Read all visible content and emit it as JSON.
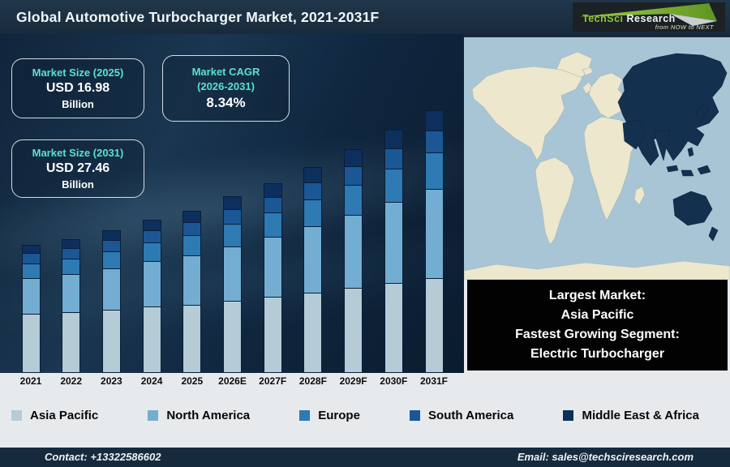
{
  "header": {
    "title": "Global Automotive Turbocharger Market, 2021-2031F",
    "logo": {
      "brand_1": "TechSci",
      "brand_2": "Research",
      "tagline": "from NOW to NEXT"
    }
  },
  "stats": [
    {
      "label": "Market Size (2025)",
      "value": "USD 16.98",
      "unit": "Billion"
    },
    {
      "label_line1": "Market CAGR",
      "label_line2": "(2026-2031)",
      "value": "8.34%"
    },
    {
      "label": "Market Size (2031)",
      "value": "USD 27.46",
      "unit": "Billion"
    }
  ],
  "chart_data": {
    "type": "bar",
    "stacked": true,
    "title": "Global Automotive Turbocharger Market, 2021-2031F",
    "unit": "USD Billion",
    "categories": [
      "2021",
      "2022",
      "2023",
      "2024",
      "2025",
      "2026E",
      "2027F",
      "2028F",
      "2029F",
      "2030F",
      "2031F"
    ],
    "series": [
      {
        "name": "Asia Pacific",
        "color": "#b5cbd6",
        "values": [
          6.19,
          6.37,
          6.63,
          6.91,
          7.13,
          7.54,
          7.97,
          8.42,
          8.89,
          9.38,
          9.89
        ]
      },
      {
        "name": "North America",
        "color": "#74add2",
        "values": [
          3.71,
          3.99,
          4.34,
          4.74,
          5.13,
          5.67,
          6.28,
          6.93,
          7.65,
          8.47,
          9.34
        ]
      },
      {
        "name": "Europe",
        "color": "#2e7ab3",
        "values": [
          1.54,
          1.65,
          1.8,
          1.95,
          2.11,
          2.34,
          2.57,
          2.83,
          3.14,
          3.45,
          3.82
        ]
      },
      {
        "name": "South America",
        "color": "#1b5795",
        "values": [
          1.09,
          1.14,
          1.22,
          1.31,
          1.39,
          1.51,
          1.65,
          1.79,
          1.94,
          2.13,
          2.31
        ]
      },
      {
        "name": "Middle East & Africa",
        "color": "#0d2f5d",
        "values": [
          0.87,
          0.95,
          1.01,
          1.09,
          1.22,
          1.34,
          1.46,
          1.62,
          1.78,
          1.93,
          2.1
        ]
      }
    ],
    "totals": [
      13.4,
      14.1,
      15.0,
      16.0,
      16.98,
      18.4,
      19.93,
      21.59,
      23.4,
      25.36,
      27.46
    ],
    "stated_values": {
      "market_size_2025_usd_billion": 16.98,
      "market_size_2031_usd_billion": 27.46,
      "cagr_2026_2031_percent": 8.34
    },
    "ylim": [
      0,
      28
    ],
    "grid": false,
    "legend_position": "bottom"
  },
  "map": {
    "highlighted_region": "Asia Pacific",
    "ocean_color": "#a8c5d5",
    "land_color": "#ece7cd",
    "highlight_color": "#13304f"
  },
  "info_box": {
    "line1": "Largest Market:",
    "line2": "Asia Pacific",
    "line3": "Fastest Growing Segment:",
    "line4": "Electric Turbocharger"
  },
  "footer": {
    "contact": "Contact: +13322586602",
    "email": "Email: sales@techsciresearch.com"
  },
  "colors": {
    "accent_teal": "#5ce0cf",
    "header_bg": "#182b3c",
    "footer_bg": "#152a3c",
    "strip_bg": "#e7eaed"
  }
}
